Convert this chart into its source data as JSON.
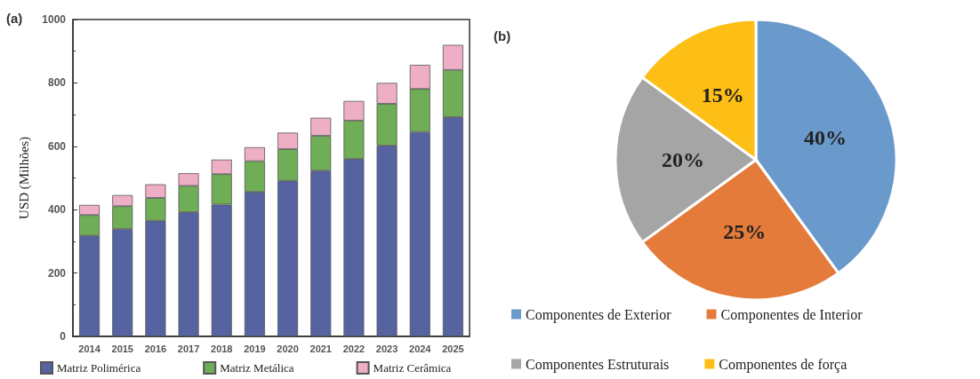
{
  "chart_data": [
    {
      "type": "bar",
      "title": "(a)",
      "ylabel": "USD (Milhões)",
      "stacked": true,
      "legend": "bottom",
      "grid": false,
      "categories": [
        "2014",
        "2015",
        "2016",
        "2017",
        "2018",
        "2019",
        "2020",
        "2021",
        "2022",
        "2023",
        "2024",
        "2025"
      ],
      "ylim": [
        0,
        1000
      ],
      "yticks": [
        0,
        200,
        400,
        600,
        800,
        1000
      ],
      "series": [
        {
          "name": "Matriz Polimérica",
          "color": "#5563a0",
          "values": [
            318,
            339,
            365,
            392,
            416,
            456,
            491,
            523,
            560,
            602,
            645,
            692
          ]
        },
        {
          "name": "Matriz Metálica",
          "color": "#6fae57",
          "values": [
            65,
            72,
            72,
            83,
            96,
            97,
            100,
            110,
            121,
            132,
            136,
            149
          ]
        },
        {
          "name": "Matriz Cerâmica",
          "color": "#eeaec6",
          "values": [
            32,
            35,
            43,
            40,
            46,
            44,
            52,
            57,
            62,
            66,
            76,
            79
          ]
        }
      ]
    },
    {
      "type": "pie",
      "title": "(b)",
      "legend": "bottom",
      "categories": [
        "Componentes de Exterior",
        "Componentes de Interior",
        "Componentes Estruturais",
        "Componentes de força"
      ],
      "values": [
        40,
        25,
        20,
        15
      ],
      "value_labels": [
        "40%",
        "25%",
        "20%",
        "15%"
      ],
      "colors": [
        "#6a9acb",
        "#e57b3a",
        "#a5a5a5",
        "#fdbf16"
      ]
    }
  ]
}
